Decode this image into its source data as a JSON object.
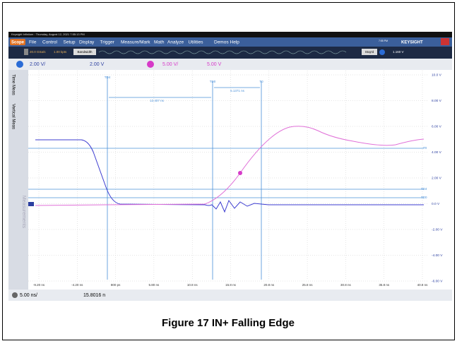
{
  "window": {
    "title": "Keysight Infiniium : Thursday, August 12, 2021 7:55:13 PM",
    "brand": "KEYSIGHT",
    "clock": "7:55 PM"
  },
  "menu": {
    "logo": "Scope",
    "items": [
      "File",
      "Control",
      "Setup",
      "Display",
      "Trigger",
      "Measure/Mark",
      "Math",
      "Analyze",
      "Utilities",
      "Demos",
      "Help"
    ]
  },
  "toolbar": {
    "sample_rate": "20.0 GSa/s",
    "points": "1.00 kpts",
    "bandwidth": "Bandwidth",
    "state": "Stop'd",
    "trigger_level": "1.160 V"
  },
  "channels": [
    {
      "scale": "2.00 V/",
      "offset": "2.00 V"
    },
    {
      "scale": "5.00 V/",
      "offset": "5.00 V"
    }
  ],
  "side_tabs": [
    "Time Meas",
    "Vertical Meas",
    "Measurements"
  ],
  "y_labels": [
    "10.0 V",
    "8.00 V",
    "6.00 V",
    "4.00 V",
    "2.00 V",
    "0.0 V",
    "-2.00 V",
    "-4.00 V",
    "-6.00 V"
  ],
  "x_labels": [
    "-9.20 ns",
    "-4.20 ns",
    "800 ps",
    "5.80 ns",
    "10.8 ns",
    "15.8 ns",
    "20.8 ns",
    "25.8 ns",
    "30.8 ns",
    "35.8 ns",
    "40.8 ns"
  ],
  "markers": {
    "td4": "TD4",
    "td0": "TD0",
    "t0": "T0",
    "delta1": "13.407 ns",
    "delta2": "5.1371 ns"
  },
  "bottom": {
    "timebase": "5.00 ns/",
    "position": "15.8016 n"
  },
  "caption": "Figure 17 IN+ Falling Edge"
}
